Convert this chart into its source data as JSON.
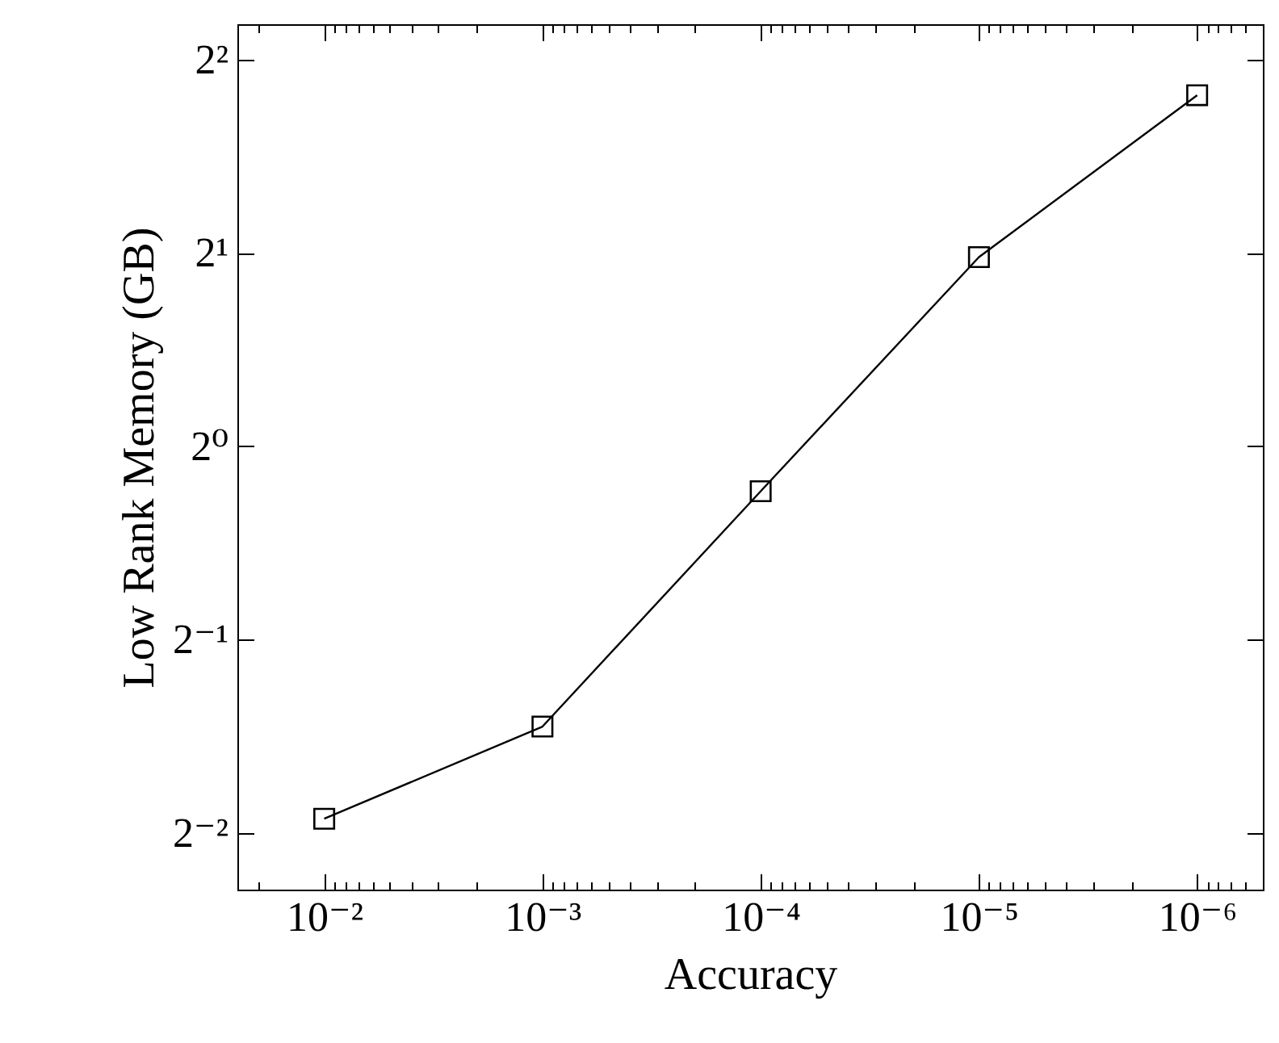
{
  "chart_data": {
    "type": "line",
    "xlabel": "Accuracy",
    "ylabel": "Low Rank Memory (GB)",
    "log": "xy",
    "marker": "square",
    "line_style": "solid",
    "x": [
      0.01,
      0.001,
      0.0001,
      1e-05,
      1e-06
    ],
    "series": [
      {
        "color": "#000000",
        "values": [
          0.263,
          0.366,
          0.851,
          1.97,
          3.52
        ]
      }
    ],
    "xlim": [
      0.025,
      5e-07
    ],
    "xticks": [
      {
        "value": 0.02,
        "label": null
      },
      {
        "value": 0.01,
        "label": "10⁻²"
      },
      {
        "value": 0.009,
        "label": null
      },
      {
        "value": 0.008,
        "label": null
      },
      {
        "value": 0.007,
        "label": null
      },
      {
        "value": 0.006,
        "label": null
      },
      {
        "value": 0.005,
        "label": null
      },
      {
        "value": 0.004,
        "label": null
      },
      {
        "value": 0.003,
        "label": null
      },
      {
        "value": 0.002,
        "label": null
      },
      {
        "value": 0.001,
        "label": "10⁻³"
      },
      {
        "value": 0.0009,
        "label": null
      },
      {
        "value": 0.0008,
        "label": null
      },
      {
        "value": 0.0007,
        "label": null
      },
      {
        "value": 0.0006,
        "label": null
      },
      {
        "value": 0.0005,
        "label": null
      },
      {
        "value": 0.0004,
        "label": null
      },
      {
        "value": 0.0003,
        "label": null
      },
      {
        "value": 0.0002,
        "label": null
      },
      {
        "value": 0.0001,
        "label": "10⁻⁴"
      },
      {
        "value": 9e-05,
        "label": null
      },
      {
        "value": 8e-05,
        "label": null
      },
      {
        "value": 7e-05,
        "label": null
      },
      {
        "value": 6e-05,
        "label": null
      },
      {
        "value": 5e-05,
        "label": null
      },
      {
        "value": 4e-05,
        "label": null
      },
      {
        "value": 3e-05,
        "label": null
      },
      {
        "value": 2e-05,
        "label": null
      },
      {
        "value": 1e-05,
        "label": "10⁻⁵"
      },
      {
        "value": 9e-06,
        "label": null
      },
      {
        "value": 8e-06,
        "label": null
      },
      {
        "value": 7e-06,
        "label": null
      },
      {
        "value": 6e-06,
        "label": null
      },
      {
        "value": 5e-06,
        "label": null
      },
      {
        "value": 4e-06,
        "label": null
      },
      {
        "value": 3e-06,
        "label": null
      },
      {
        "value": 2e-06,
        "label": null
      },
      {
        "value": 1e-06,
        "label": "10⁻⁶"
      },
      {
        "value": 9e-07,
        "label": null
      },
      {
        "value": 8e-07,
        "label": null
      },
      {
        "value": 7e-07,
        "label": null
      },
      {
        "value": 6e-07,
        "label": null
      }
    ],
    "ylim": [
      0.204,
      4.54
    ],
    "yticks": [
      {
        "value": 0.25,
        "label": "2⁻²"
      },
      {
        "value": 0.5,
        "label": "2⁻¹"
      },
      {
        "value": 1,
        "label": "2⁰"
      },
      {
        "value": 2,
        "label": "2¹"
      },
      {
        "value": 4,
        "label": "2²"
      }
    ]
  }
}
